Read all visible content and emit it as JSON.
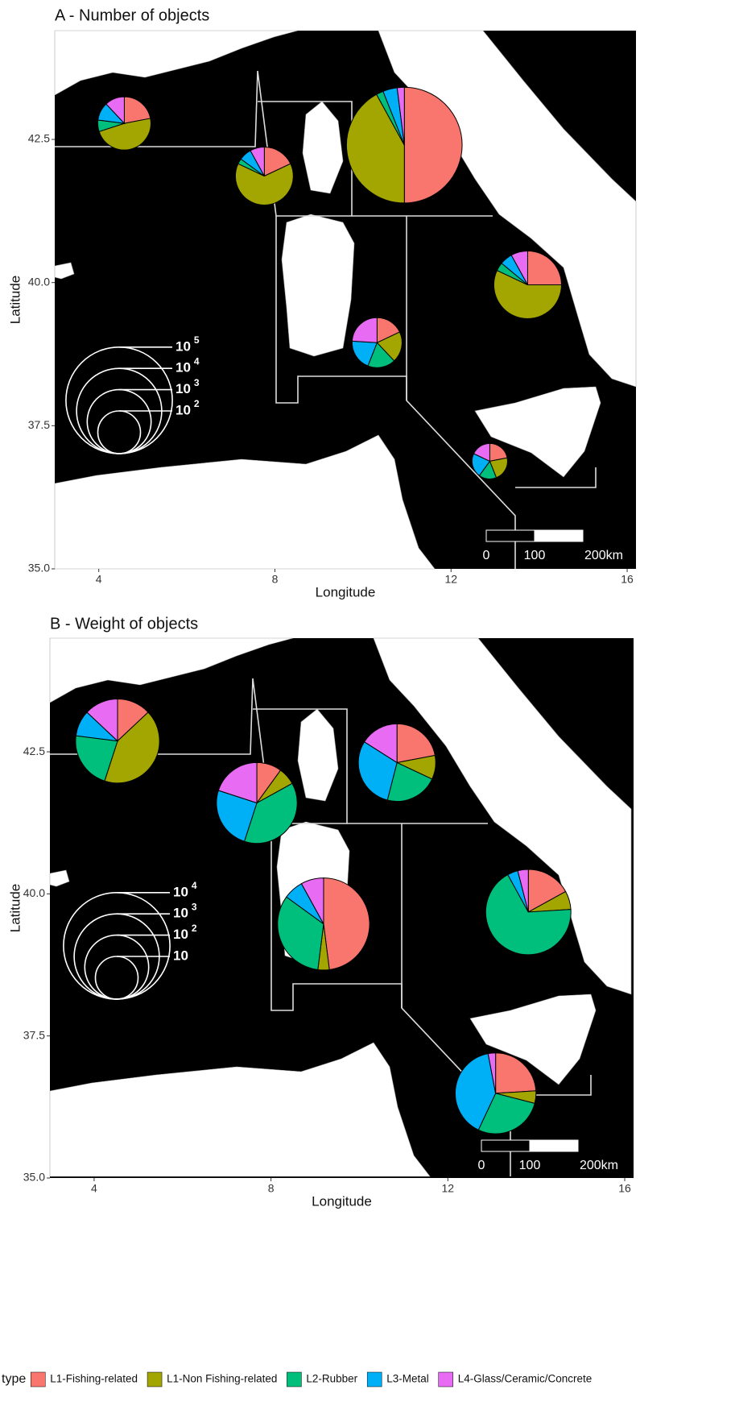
{
  "chart_data": [
    {
      "type": "pie-map",
      "title": "A - Number of objects",
      "xlabel": "Longitude",
      "ylabel": "Latitude",
      "xlim": [
        3,
        16.2
      ],
      "ylim": [
        35,
        44.4
      ],
      "xticks": [
        4,
        8,
        12,
        16
      ],
      "yticks": [
        {
          "value": 35,
          "label": "35.0"
        },
        37.5,
        {
          "value": 40,
          "label": "40.0"
        },
        42.5
      ],
      "size_legend": [
        {
          "value": 100000,
          "label": "10",
          "exponent": "5"
        },
        {
          "value": 10000,
          "label": "10",
          "exponent": "4"
        },
        {
          "value": 1000,
          "label": "10",
          "exponent": "3"
        },
        {
          "value": 100,
          "label": "10",
          "exponent": "2"
        }
      ],
      "scale_bar": [
        "0",
        "100",
        "200km"
      ],
      "pies": [
        {
          "lon": 4.58,
          "lat": 42.78,
          "total": 310,
          "values": [
            22,
            48,
            7,
            11,
            12
          ]
        },
        {
          "lon": 7.76,
          "lat": 41.86,
          "total": 520,
          "values": [
            18,
            64,
            3,
            7,
            8
          ]
        },
        {
          "lon": 10.94,
          "lat": 42.4,
          "total": 270000,
          "values": [
            50,
            42,
            2,
            4,
            2
          ]
        },
        {
          "lon": 13.74,
          "lat": 39.96,
          "total": 1500,
          "values": [
            25,
            57,
            4,
            6,
            8
          ]
        },
        {
          "lon": 10.32,
          "lat": 38.95,
          "total": 220,
          "values": [
            18,
            20,
            18,
            20,
            24
          ]
        },
        {
          "lon": 12.88,
          "lat": 36.88,
          "total": 46,
          "values": [
            22,
            22,
            16,
            22,
            18
          ]
        }
      ]
    },
    {
      "type": "pie-map",
      "title": "B - Weight of objects",
      "xlabel": "Longitude",
      "ylabel": "Latitude",
      "xlim": [
        3,
        16.2
      ],
      "ylim": [
        35,
        44.5
      ],
      "xticks": [
        4,
        8,
        12,
        16
      ],
      "yticks": [
        {
          "value": 35,
          "label": "35.0"
        },
        37.5,
        {
          "value": 40,
          "label": "40.0"
        },
        42.5
      ],
      "size_legend": [
        {
          "value": 10000,
          "label": "10",
          "exponent": "4"
        },
        {
          "value": 1000,
          "label": "10",
          "exponent": "3"
        },
        {
          "value": 100,
          "label": "10",
          "exponent": "2"
        },
        {
          "value": 10,
          "label": "10"
        }
      ],
      "scale_bar": [
        "0",
        "100",
        "200km"
      ],
      "pies": [
        {
          "lon": 4.53,
          "lat": 42.69,
          "total": 870,
          "values": [
            13,
            42,
            22,
            10,
            13
          ]
        },
        {
          "lon": 7.68,
          "lat": 41.6,
          "total": 620,
          "values": [
            10,
            7,
            38,
            25,
            20
          ]
        },
        {
          "lon": 10.85,
          "lat": 42.31,
          "total": 430,
          "values": [
            22,
            10,
            22,
            30,
            16
          ]
        },
        {
          "lon": 9.19,
          "lat": 39.47,
          "total": 2100,
          "values": [
            48,
            4,
            33,
            7,
            8
          ]
        },
        {
          "lon": 13.82,
          "lat": 39.68,
          "total": 1000,
          "values": [
            17,
            7,
            68,
            4,
            4
          ]
        },
        {
          "lon": 13.08,
          "lat": 36.49,
          "total": 620,
          "values": [
            24,
            5,
            28,
            40,
            3
          ]
        }
      ]
    }
  ],
  "legend": {
    "title": "type",
    "series": [
      {
        "name": "L1-Fishing-related",
        "color": "#F8766D"
      },
      {
        "name": "L1-Non Fishing-related",
        "color": "#A3A500"
      },
      {
        "name": "L2-Rubber",
        "color": "#00BF7D"
      },
      {
        "name": "L3-Metal",
        "color": "#00B0F6"
      },
      {
        "name": "L4-Glass/Ceramic/Concrete",
        "color": "#E76BF3"
      }
    ]
  }
}
